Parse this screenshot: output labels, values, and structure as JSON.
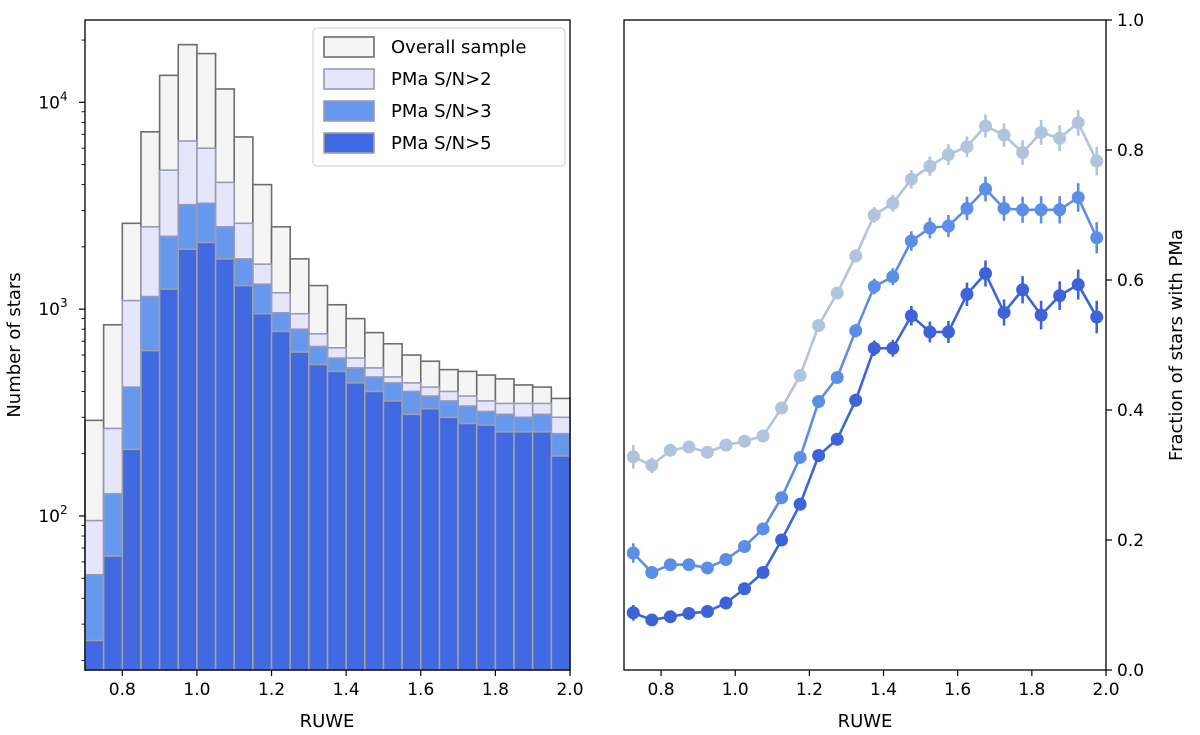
{
  "chart_data": [
    {
      "type": "bar",
      "subtype": "overlaid-histogram",
      "title": "",
      "xlabel": "RUWE",
      "ylabel": "Number of stars",
      "xlim": [
        0.7,
        2.0
      ],
      "ylim": [
        18,
        25000
      ],
      "yscale": "log",
      "grid": false,
      "legend_position": "top-right",
      "x_ticks": [
        0.8,
        1.0,
        1.2,
        1.4,
        1.6,
        1.8,
        2.0
      ],
      "x_tick_labels": [
        "0.8",
        "1.0",
        "1.2",
        "1.4",
        "1.6",
        "1.8",
        "2.0"
      ],
      "y_ticks": [
        100,
        1000,
        10000
      ],
      "y_tick_base": "10",
      "y_tick_exponents": [
        "2",
        "3",
        "4"
      ],
      "bin_edges": [
        0.7,
        0.75,
        0.8,
        0.85,
        0.9,
        0.95,
        1.0,
        1.05,
        1.1,
        1.15,
        1.2,
        1.25,
        1.3,
        1.35,
        1.4,
        1.45,
        1.5,
        1.55,
        1.6,
        1.65,
        1.7,
        1.75,
        1.8,
        1.85,
        1.9,
        1.95,
        2.0
      ],
      "series": [
        {
          "name": "Overall sample",
          "fill": "#f5f5f5",
          "edge": "#6e6e6e",
          "values": [
            290,
            840,
            2600,
            7200,
            13500,
            19000,
            17200,
            11600,
            6800,
            4000,
            2500,
            1750,
            1300,
            1050,
            900,
            770,
            680,
            600,
            560,
            510,
            500,
            480,
            460,
            430,
            420,
            370
          ]
        },
        {
          "name": "PMa S/N>2",
          "fill": "#e5e6fa",
          "edge": "#9a9ab8",
          "values": [
            95,
            265,
            1100,
            2500,
            4700,
            6500,
            6000,
            4100,
            2600,
            1650,
            1200,
            950,
            760,
            650,
            580,
            520,
            470,
            440,
            420,
            400,
            380,
            360,
            350,
            350,
            350,
            300
          ]
        },
        {
          "name": "PMa S/N>3",
          "fill": "#6699ee",
          "edge": "#9a9ab8",
          "values": [
            52,
            128,
            420,
            1150,
            2250,
            3200,
            3250,
            2500,
            1750,
            1320,
            960,
            800,
            660,
            580,
            520,
            470,
            440,
            400,
            380,
            360,
            340,
            320,
            310,
            300,
            310,
            250
          ]
        },
        {
          "name": "PMa S/N>5",
          "fill": "#4169e1",
          "edge": "#a0a0a0",
          "values": [
            25,
            64,
            210,
            630,
            1250,
            1950,
            2100,
            1750,
            1300,
            950,
            780,
            620,
            540,
            500,
            440,
            400,
            360,
            310,
            330,
            300,
            280,
            275,
            255,
            255,
            255,
            195
          ]
        }
      ]
    },
    {
      "type": "line",
      "subtype": "line-with-errorbars",
      "title": "",
      "xlabel": "RUWE",
      "ylabel": "Fraction of stars with PMa",
      "xlim": [
        0.7,
        2.0
      ],
      "ylim": [
        0.0,
        1.0
      ],
      "y_axis_side": "right",
      "grid": false,
      "x_ticks": [
        0.8,
        1.0,
        1.2,
        1.4,
        1.6,
        1.8,
        2.0
      ],
      "x_tick_labels": [
        "0.8",
        "1.0",
        "1.2",
        "1.4",
        "1.6",
        "1.8",
        "2.0"
      ],
      "y_ticks": [
        0.0,
        0.2,
        0.4,
        0.6,
        0.8,
        1.0
      ],
      "y_tick_labels": [
        "0.0",
        "0.2",
        "0.4",
        "0.6",
        "0.8",
        "1.0"
      ],
      "x": [
        0.725,
        0.775,
        0.825,
        0.875,
        0.925,
        0.975,
        1.025,
        1.075,
        1.125,
        1.175,
        1.225,
        1.275,
        1.325,
        1.375,
        1.425,
        1.475,
        1.525,
        1.575,
        1.625,
        1.675,
        1.725,
        1.775,
        1.825,
        1.875,
        1.925,
        1.975
      ],
      "series": [
        {
          "name": "PMa S/N>2",
          "color": "#b0c4de",
          "values": [
            0.328,
            0.315,
            0.338,
            0.343,
            0.335,
            0.346,
            0.352,
            0.36,
            0.403,
            0.453,
            0.53,
            0.58,
            0.637,
            0.7,
            0.718,
            0.755,
            0.775,
            0.793,
            0.805,
            0.837,
            0.823,
            0.796,
            0.827,
            0.818,
            0.842,
            0.783
          ],
          "errors": [
            0.018,
            0.012,
            0.008,
            0.006,
            0.005,
            0.004,
            0.004,
            0.005,
            0.006,
            0.007,
            0.008,
            0.009,
            0.01,
            0.012,
            0.013,
            0.014,
            0.015,
            0.016,
            0.016,
            0.018,
            0.018,
            0.019,
            0.019,
            0.02,
            0.02,
            0.022
          ]
        },
        {
          "name": "PMa S/N>3",
          "color": "#5b8ee6",
          "values": [
            0.18,
            0.15,
            0.162,
            0.162,
            0.157,
            0.17,
            0.19,
            0.217,
            0.265,
            0.327,
            0.413,
            0.45,
            0.522,
            0.59,
            0.605,
            0.66,
            0.68,
            0.683,
            0.71,
            0.74,
            0.71,
            0.708,
            0.708,
            0.708,
            0.727,
            0.665
          ],
          "errors": [
            0.015,
            0.01,
            0.007,
            0.005,
            0.004,
            0.003,
            0.003,
            0.004,
            0.005,
            0.006,
            0.008,
            0.009,
            0.01,
            0.012,
            0.013,
            0.015,
            0.016,
            0.017,
            0.018,
            0.019,
            0.019,
            0.02,
            0.021,
            0.021,
            0.022,
            0.024
          ]
        },
        {
          "name": "PMa S/N>5",
          "color": "#3d63d9",
          "values": [
            0.088,
            0.077,
            0.082,
            0.087,
            0.09,
            0.103,
            0.125,
            0.15,
            0.2,
            0.255,
            0.33,
            0.355,
            0.415,
            0.495,
            0.495,
            0.545,
            0.52,
            0.52,
            0.578,
            0.61,
            0.55,
            0.585,
            0.546,
            0.576,
            0.593,
            0.543
          ],
          "errors": [
            0.012,
            0.008,
            0.006,
            0.004,
            0.003,
            0.003,
            0.003,
            0.004,
            0.005,
            0.006,
            0.008,
            0.009,
            0.01,
            0.012,
            0.013,
            0.015,
            0.016,
            0.017,
            0.018,
            0.02,
            0.02,
            0.021,
            0.022,
            0.022,
            0.023,
            0.025
          ]
        }
      ]
    }
  ]
}
